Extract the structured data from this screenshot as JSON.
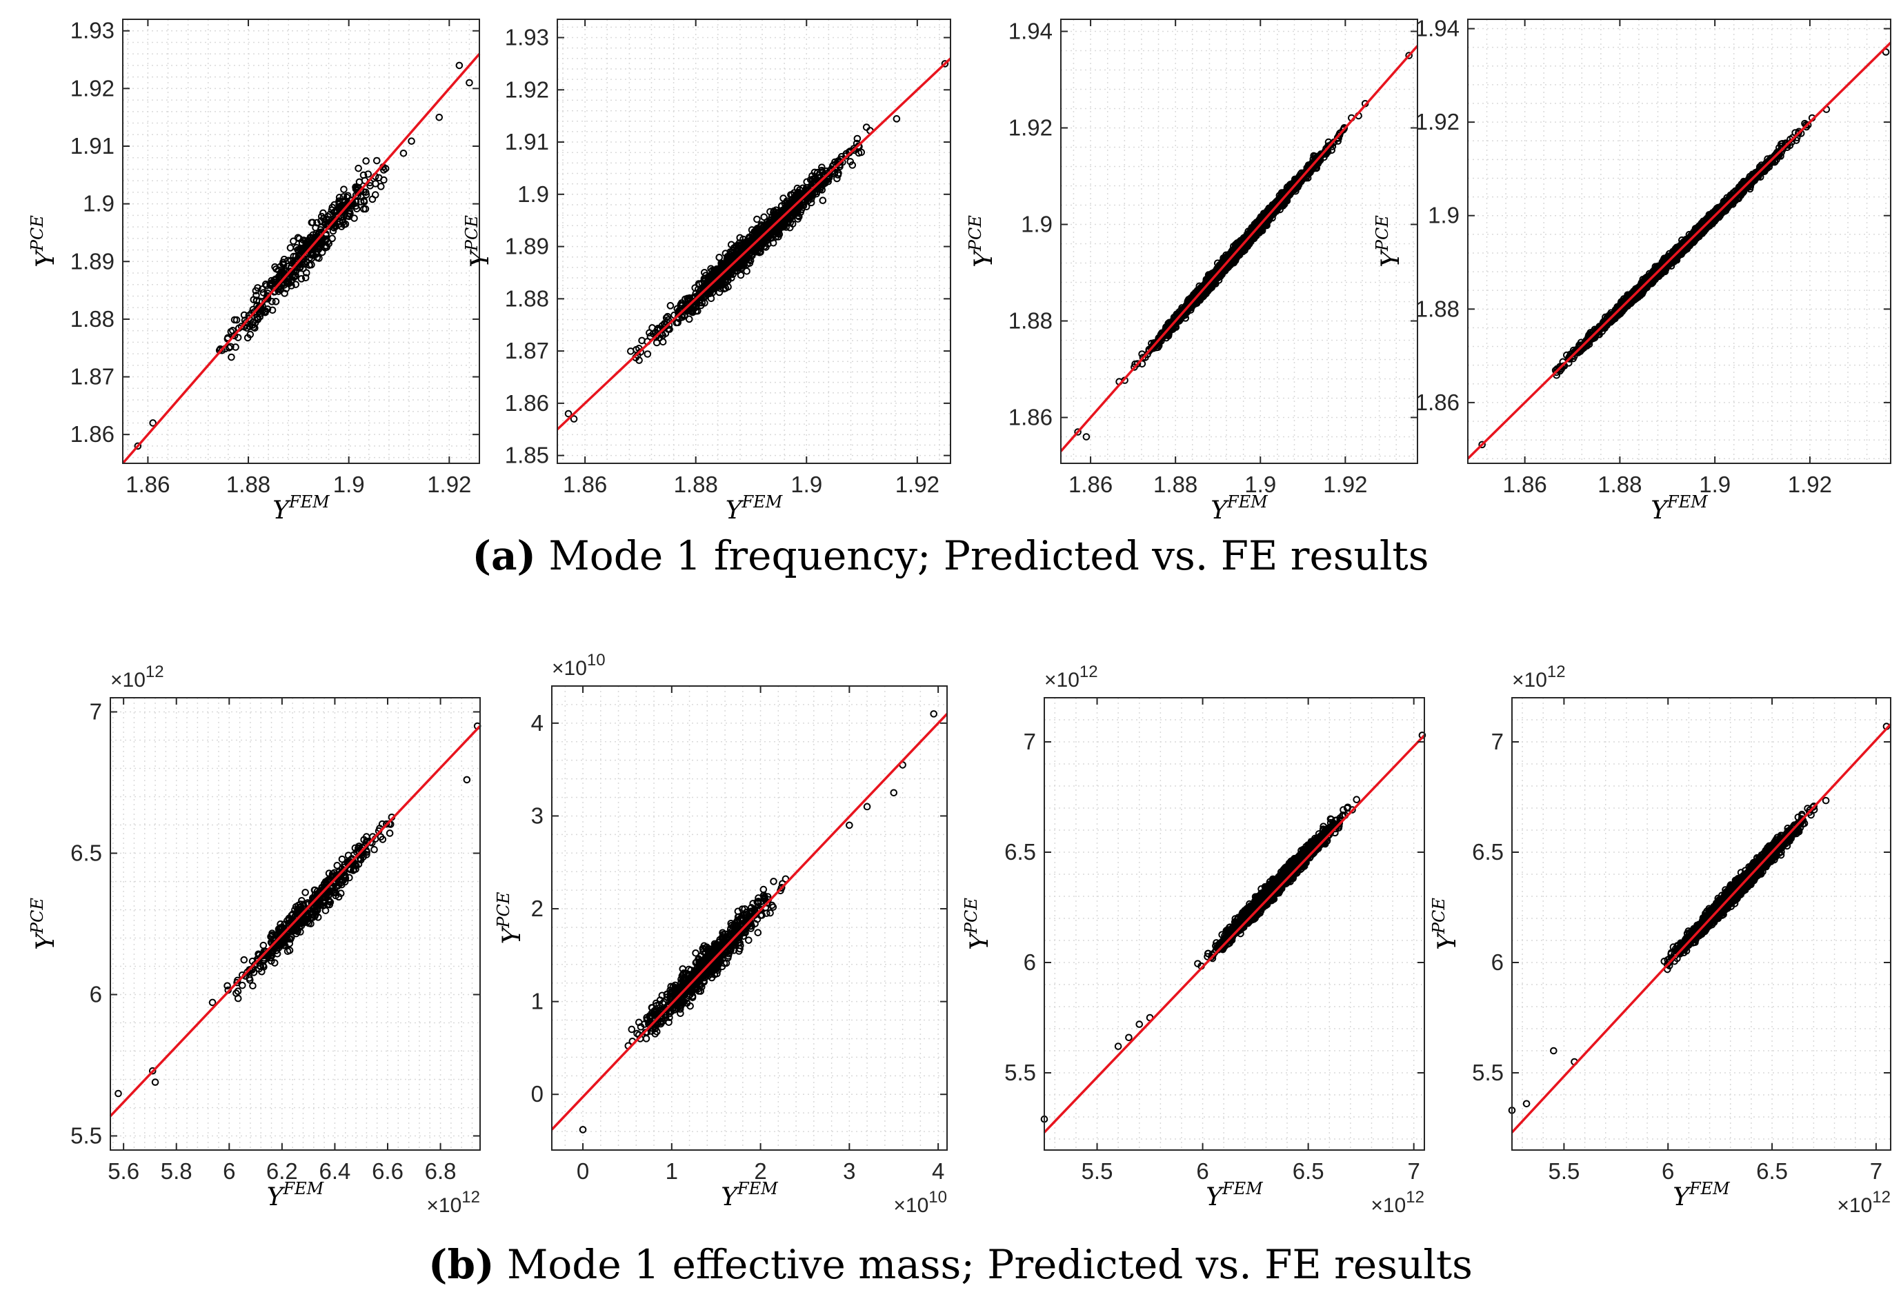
{
  "captions": {
    "a": {
      "label": "a",
      "text": " Mode 1 frequency; Predicted vs. FE results"
    },
    "b": {
      "label": "b",
      "text": " Mode 1 effective mass; Predicted vs. FE results"
    }
  },
  "axis_titles": {
    "x": "FEM",
    "y": "PCE",
    "base": "Y"
  },
  "colors": {
    "fit_line": "#e8141e",
    "points": "#000000",
    "grid": "#d9d9d9",
    "axes": "#262626"
  },
  "chart_data": [
    {
      "id": "a1",
      "type": "scatter",
      "panel": "(a) Mode 1 frequency",
      "n_points": 420,
      "spread": 0.0028,
      "xlabel": "Y^FEM",
      "ylabel": "Y^PCE",
      "xlim": [
        1.855,
        1.926
      ],
      "ylim": [
        1.855,
        1.932
      ],
      "xticks": [
        1.86,
        1.88,
        1.9,
        1.92
      ],
      "xtick_labels": [
        "1.86",
        "1.88",
        "1.9",
        "1.92"
      ],
      "yticks": [
        1.86,
        1.87,
        1.88,
        1.89,
        1.9,
        1.91,
        1.92,
        1.93
      ],
      "ytick_labels": [
        "1.86",
        "1.87",
        "1.88",
        "1.89",
        "1.9",
        "1.91",
        "1.92",
        "1.93"
      ],
      "x_exponent": "",
      "y_exponent": "",
      "grid": true,
      "fit_line": {
        "from": [
          1.855,
          1.855
        ],
        "to": [
          1.926,
          1.926
        ]
      },
      "points_range": [
        1.858,
        1.924
      ],
      "extremes": [
        [
          1.858,
          1.858
        ],
        [
          1.861,
          1.862
        ],
        [
          1.918,
          1.915
        ],
        [
          1.922,
          1.924
        ],
        [
          1.924,
          1.921
        ]
      ]
    },
    {
      "id": "a2",
      "type": "scatter",
      "panel": "(a) Mode 1 frequency",
      "n_points": 1100,
      "spread": 0.0022,
      "xlabel": "Y^FEM",
      "ylabel": "Y^PCE",
      "xlim": [
        1.855,
        1.926
      ],
      "ylim": [
        1.8485,
        1.9335
      ],
      "xticks": [
        1.86,
        1.88,
        1.9,
        1.92
      ],
      "xtick_labels": [
        "1.86",
        "1.88",
        "1.9",
        "1.92"
      ],
      "yticks": [
        1.85,
        1.86,
        1.87,
        1.88,
        1.89,
        1.9,
        1.91,
        1.92,
        1.93
      ],
      "ytick_labels": [
        "1.85",
        "1.86",
        "1.87",
        "1.88",
        "1.89",
        "1.9",
        "1.91",
        "1.92",
        "1.93"
      ],
      "x_exponent": "",
      "y_exponent": "",
      "grid": true,
      "fit_line": {
        "from": [
          1.855,
          1.855
        ],
        "to": [
          1.926,
          1.926
        ]
      },
      "points_range": [
        1.857,
        1.925
      ],
      "extremes": [
        [
          1.857,
          1.858
        ],
        [
          1.858,
          1.857
        ],
        [
          1.925,
          1.925
        ]
      ]
    },
    {
      "id": "a3",
      "type": "scatter",
      "panel": "(a) Mode 1 frequency",
      "n_points": 2200,
      "spread": 0.0011,
      "xlabel": "Y^FEM",
      "ylabel": "Y^PCE",
      "xlim": [
        1.853,
        1.937
      ],
      "ylim": [
        1.8505,
        1.9425
      ],
      "xticks": [
        1.86,
        1.88,
        1.9,
        1.92
      ],
      "xtick_labels": [
        "1.86",
        "1.88",
        "1.9",
        "1.92"
      ],
      "yticks": [
        1.86,
        1.88,
        1.9,
        1.92,
        1.94
      ],
      "ytick_labels": [
        "1.86",
        "1.88",
        "1.9",
        "1.92",
        "1.94"
      ],
      "x_exponent": "",
      "y_exponent": "",
      "grid": true,
      "fit_line": {
        "from": [
          1.853,
          1.853
        ],
        "to": [
          1.937,
          1.937
        ]
      },
      "points_range": [
        1.857,
        1.934
      ],
      "extremes": [
        [
          1.857,
          1.857
        ],
        [
          1.859,
          1.856
        ],
        [
          1.935,
          1.935
        ]
      ]
    },
    {
      "id": "a4",
      "type": "scatter",
      "panel": "(a) Mode 1 frequency",
      "n_points": 2800,
      "spread": 0.0009,
      "xlabel": "Y^FEM",
      "ylabel": "Y^PCE",
      "xlim": [
        1.848,
        1.937
      ],
      "ylim": [
        1.847,
        1.942
      ],
      "xticks": [
        1.86,
        1.88,
        1.9,
        1.92
      ],
      "xtick_labels": [
        "1.86",
        "1.88",
        "1.9",
        "1.92"
      ],
      "yticks": [
        1.86,
        1.88,
        1.9,
        1.92,
        1.94
      ],
      "ytick_labels": [
        "1.86",
        "1.88",
        "1.9",
        "1.92",
        "1.94"
      ],
      "x_exponent": "",
      "y_exponent": "",
      "grid": true,
      "fit_line": {
        "from": [
          1.848,
          1.848
        ],
        "to": [
          1.937,
          1.937
        ]
      },
      "points_range": [
        1.852,
        1.934
      ],
      "extremes": [
        [
          1.851,
          1.851
        ],
        [
          1.936,
          1.935
        ]
      ]
    },
    {
      "id": "b1",
      "type": "scatter",
      "panel": "(b) Mode 1 effective mass",
      "n_points": 430,
      "spread": 0.045,
      "xlabel": "Y^FEM",
      "ylabel": "Y^PCE",
      "xlim": [
        5.55,
        6.95
      ],
      "ylim": [
        5.45,
        7.05
      ],
      "xticks": [
        5.6,
        5.8,
        6.0,
        6.2,
        6.4,
        6.6,
        6.8
      ],
      "xtick_labels": [
        "5.6",
        "5.8",
        "6",
        "6.2",
        "6.4",
        "6.6",
        "6.8"
      ],
      "yticks": [
        5.5,
        6.0,
        6.5,
        7.0
      ],
      "ytick_labels": [
        "5.5",
        "6",
        "6.5",
        "7"
      ],
      "x_exponent": "12",
      "y_exponent": "12",
      "grid": true,
      "fit_line": {
        "from": [
          5.55,
          5.57
        ],
        "to": [
          6.95,
          6.95
        ]
      },
      "points_range": [
        5.75,
        6.88
      ],
      "extremes": [
        [
          5.58,
          5.65
        ],
        [
          5.71,
          5.73
        ],
        [
          5.72,
          5.69
        ],
        [
          6.9,
          6.76
        ],
        [
          6.94,
          6.95
        ]
      ]
    },
    {
      "id": "b2",
      "type": "scatter",
      "panel": "(b) Mode 1 effective mass",
      "n_points": 700,
      "spread": 0.16,
      "xlabel": "Y^FEM",
      "ylabel": "Y^PCE",
      "xlim": [
        -0.35,
        4.1
      ],
      "ylim": [
        -0.6,
        4.4
      ],
      "xticks": [
        0,
        1,
        2,
        3,
        4
      ],
      "xtick_labels": [
        "0",
        "1",
        "2",
        "3",
        "4"
      ],
      "yticks": [
        0,
        1,
        2,
        3,
        4
      ],
      "ytick_labels": [
        "0",
        "1",
        "2",
        "3",
        "4"
      ],
      "x_exponent": "10",
      "y_exponent": "10",
      "grid": true,
      "fit_line": {
        "from": [
          -0.35,
          -0.38
        ],
        "to": [
          4.1,
          4.1
        ]
      },
      "points_range": [
        0.0,
        2.8
      ],
      "extremes": [
        [
          0.0,
          -0.38
        ],
        [
          3.0,
          2.9
        ],
        [
          3.2,
          3.1
        ],
        [
          3.5,
          3.25
        ],
        [
          3.6,
          3.55
        ],
        [
          3.95,
          4.1
        ]
      ]
    },
    {
      "id": "b3",
      "type": "scatter",
      "panel": "(b) Mode 1 effective mass",
      "n_points": 2400,
      "spread": 0.03,
      "xlabel": "Y^FEM",
      "ylabel": "Y^PCE",
      "xlim": [
        5.25,
        7.05
      ],
      "ylim": [
        5.15,
        7.2
      ],
      "xticks": [
        5.5,
        6.0,
        6.5,
        7.0
      ],
      "xtick_labels": [
        "5.5",
        "6",
        "6.5",
        "7"
      ],
      "yticks": [
        5.5,
        6.0,
        6.5,
        7.0
      ],
      "ytick_labels": [
        "5.5",
        "6",
        "6.5",
        "7"
      ],
      "x_exponent": "12",
      "y_exponent": "12",
      "grid": true,
      "fit_line": {
        "from": [
          5.25,
          5.23
        ],
        "to": [
          7.05,
          7.03
        ]
      },
      "points_range": [
        5.85,
        6.85
      ],
      "extremes": [
        [
          5.25,
          5.29
        ],
        [
          5.6,
          5.62
        ],
        [
          5.65,
          5.66
        ],
        [
          5.7,
          5.72
        ],
        [
          5.75,
          5.75
        ],
        [
          7.04,
          7.03
        ]
      ]
    },
    {
      "id": "b4",
      "type": "scatter",
      "panel": "(b) Mode 1 effective mass",
      "n_points": 2400,
      "spread": 0.03,
      "xlabel": "Y^FEM",
      "ylabel": "Y^PCE",
      "xlim": [
        5.25,
        7.07
      ],
      "ylim": [
        5.15,
        7.2
      ],
      "xticks": [
        5.5,
        6.0,
        6.5,
        7.0
      ],
      "xtick_labels": [
        "5.5",
        "6",
        "6.5",
        "7"
      ],
      "yticks": [
        5.5,
        6.0,
        6.5,
        7.0
      ],
      "ytick_labels": [
        "5.5",
        "6",
        "6.5",
        "7"
      ],
      "x_exponent": "12",
      "y_exponent": "12",
      "grid": true,
      "fit_line": {
        "from": [
          5.25,
          5.23
        ],
        "to": [
          7.07,
          7.08
        ]
      },
      "points_range": [
        5.8,
        6.9
      ],
      "extremes": [
        [
          5.25,
          5.33
        ],
        [
          5.32,
          5.36
        ],
        [
          5.45,
          5.6
        ],
        [
          5.55,
          5.55
        ],
        [
          7.05,
          7.07
        ]
      ]
    }
  ]
}
